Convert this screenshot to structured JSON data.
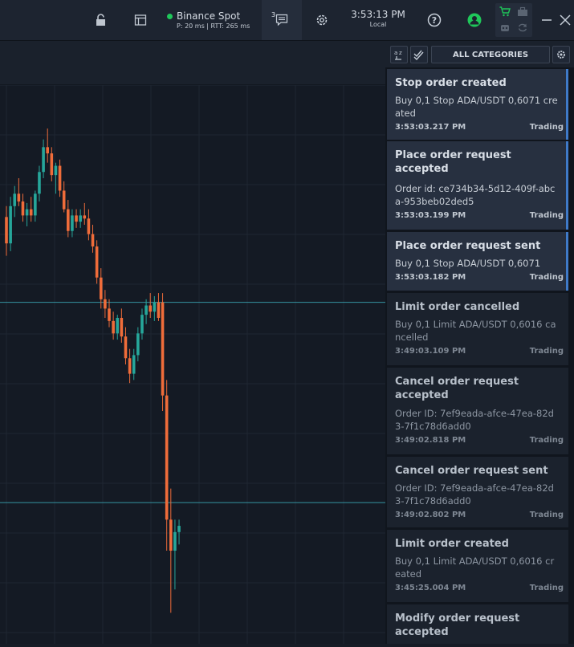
{
  "topbar": {
    "connection": {
      "name": "Binance Spot",
      "status": "P: 20 ms | RTT: 265 ms",
      "status_color": "#1fc75a"
    },
    "messages_count": "3",
    "clock": {
      "time": "3:53:13 PM",
      "zone": "Local"
    },
    "icons": [
      "lock-icon",
      "layout-icon",
      "messages-icon",
      "gear-icon",
      "help-icon",
      "user-icon",
      "cart-icon",
      "briefcase-icon",
      "robot-icon",
      "refresh-icon",
      "minimize-icon",
      "close-icon"
    ]
  },
  "panel": {
    "category_filter": "ALL CATEGORIES",
    "events": [
      {
        "title": "Stop order created",
        "message": "Buy 0,1 Stop ADA/USDT 0,6071 created",
        "time": "3:53:03.217 PM",
        "category": "Trading",
        "unread": true
      },
      {
        "title": "Place order request accepted",
        "message": "Order id: ce734b34-5d12-409f-abca-953beb02ded5",
        "time": "3:53:03.199 PM",
        "category": "Trading",
        "unread": true
      },
      {
        "title": "Place order request sent",
        "message": "Buy 0,1 Stop ADA/USDT 0,6071",
        "time": "3:53:03.182 PM",
        "category": "Trading",
        "unread": true
      },
      {
        "title": "Limit order cancelled",
        "message": "Buy 0,1 Limit ADA/USDT 0,6016 cancelled",
        "time": "3:49:03.109 PM",
        "category": "Trading",
        "unread": false
      },
      {
        "title": "Cancel order request accepted",
        "message": "Order ID: 7ef9eada-afce-47ea-82d3-7f1c78d6add0",
        "time": "3:49:02.818 PM",
        "category": "Trading",
        "unread": false
      },
      {
        "title": "Cancel order request sent",
        "message": "Order ID: 7ef9eada-afce-47ea-82d3-7f1c78d6add0",
        "time": "3:49:02.802 PM",
        "category": "Trading",
        "unread": false
      },
      {
        "title": "Limit order created",
        "message": "Buy 0,1 Limit ADA/USDT 0,6016 created",
        "time": "3:45:25.004 PM",
        "category": "Trading",
        "unread": false
      },
      {
        "title": "Modify order request accepted",
        "message": "",
        "time": "",
        "category": "",
        "unread": false
      }
    ]
  },
  "colors": {
    "up": "#26a69a",
    "down": "#ef6c3a",
    "unread_marker": "#3f7ac8",
    "level_line": "#3cb3c0"
  },
  "chart_data": {
    "type": "candlestick",
    "candles": [
      {
        "o": 0.6255,
        "h": 0.6262,
        "l": 0.623,
        "c": 0.6238
      },
      {
        "o": 0.6238,
        "h": 0.6268,
        "l": 0.6233,
        "c": 0.6262
      },
      {
        "o": 0.6262,
        "h": 0.6275,
        "l": 0.6255,
        "c": 0.627
      },
      {
        "o": 0.627,
        "h": 0.628,
        "l": 0.6262,
        "c": 0.6265
      },
      {
        "o": 0.6265,
        "h": 0.627,
        "l": 0.6252,
        "c": 0.6256
      },
      {
        "o": 0.6256,
        "h": 0.6264,
        "l": 0.6249,
        "c": 0.626
      },
      {
        "o": 0.626,
        "h": 0.6268,
        "l": 0.6252,
        "c": 0.6256
      },
      {
        "o": 0.6256,
        "h": 0.6272,
        "l": 0.6252,
        "c": 0.627
      },
      {
        "o": 0.627,
        "h": 0.6288,
        "l": 0.6265,
        "c": 0.6284
      },
      {
        "o": 0.6284,
        "h": 0.6305,
        "l": 0.628,
        "c": 0.63
      },
      {
        "o": 0.63,
        "h": 0.6312,
        "l": 0.629,
        "c": 0.6296
      },
      {
        "o": 0.6296,
        "h": 0.63,
        "l": 0.6278,
        "c": 0.6282
      },
      {
        "o": 0.6282,
        "h": 0.629,
        "l": 0.627,
        "c": 0.6288
      },
      {
        "o": 0.6288,
        "h": 0.6292,
        "l": 0.6268,
        "c": 0.6272
      },
      {
        "o": 0.6272,
        "h": 0.6278,
        "l": 0.6258,
        "c": 0.626
      },
      {
        "o": 0.626,
        "h": 0.6266,
        "l": 0.6242,
        "c": 0.6246
      },
      {
        "o": 0.6246,
        "h": 0.626,
        "l": 0.6242,
        "c": 0.6256
      },
      {
        "o": 0.6256,
        "h": 0.626,
        "l": 0.6248,
        "c": 0.6252
      },
      {
        "o": 0.6252,
        "h": 0.626,
        "l": 0.6248,
        "c": 0.6256
      },
      {
        "o": 0.6256,
        "h": 0.6264,
        "l": 0.625,
        "c": 0.6254
      },
      {
        "o": 0.6254,
        "h": 0.626,
        "l": 0.624,
        "c": 0.6244
      },
      {
        "o": 0.6244,
        "h": 0.625,
        "l": 0.6232,
        "c": 0.6236
      },
      {
        "o": 0.6236,
        "h": 0.624,
        "l": 0.6212,
        "c": 0.6216
      },
      {
        "o": 0.6216,
        "h": 0.6222,
        "l": 0.6196,
        "c": 0.6202
      },
      {
        "o": 0.6202,
        "h": 0.6208,
        "l": 0.619,
        "c": 0.6196
      },
      {
        "o": 0.6196,
        "h": 0.6202,
        "l": 0.6184,
        "c": 0.6188
      },
      {
        "o": 0.6188,
        "h": 0.6194,
        "l": 0.6176,
        "c": 0.618
      },
      {
        "o": 0.618,
        "h": 0.6192,
        "l": 0.6176,
        "c": 0.619
      },
      {
        "o": 0.619,
        "h": 0.6196,
        "l": 0.6174,
        "c": 0.6178
      },
      {
        "o": 0.6178,
        "h": 0.6184,
        "l": 0.616,
        "c": 0.6164
      },
      {
        "o": 0.6164,
        "h": 0.617,
        "l": 0.6148,
        "c": 0.6154
      },
      {
        "o": 0.6154,
        "h": 0.617,
        "l": 0.615,
        "c": 0.6166
      },
      {
        "o": 0.6166,
        "h": 0.6184,
        "l": 0.6162,
        "c": 0.618
      },
      {
        "o": 0.618,
        "h": 0.6196,
        "l": 0.6176,
        "c": 0.6192
      },
      {
        "o": 0.6192,
        "h": 0.6202,
        "l": 0.6186,
        "c": 0.6198
      },
      {
        "o": 0.6198,
        "h": 0.6206,
        "l": 0.619,
        "c": 0.6194
      },
      {
        "o": 0.6194,
        "h": 0.6204,
        "l": 0.6188,
        "c": 0.62
      },
      {
        "o": 0.62,
        "h": 0.6206,
        "l": 0.6188,
        "c": 0.619
      },
      {
        "o": 0.62,
        "h": 0.6206,
        "l": 0.613,
        "c": 0.614
      },
      {
        "o": 0.614,
        "h": 0.615,
        "l": 0.604,
        "c": 0.606
      },
      {
        "o": 0.606,
        "h": 0.608,
        "l": 0.6,
        "c": 0.604
      },
      {
        "o": 0.604,
        "h": 0.606,
        "l": 0.6015,
        "c": 0.6052
      },
      {
        "o": 0.6052,
        "h": 0.606,
        "l": 0.6044,
        "c": 0.6056
      }
    ],
    "levels": [
      0.62,
      0.6071
    ],
    "ylim": [
      0.598,
      0.634
    ],
    "grid": true
  }
}
